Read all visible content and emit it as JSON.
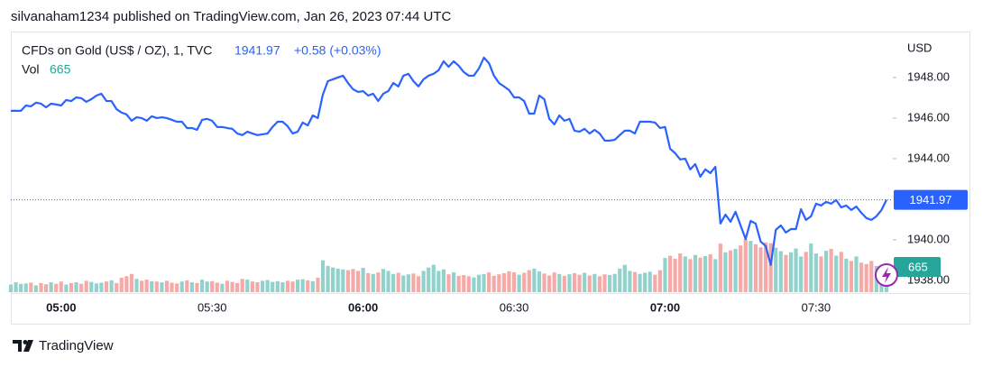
{
  "header": "silvanaham1234 published on TradingView.com, Jan 26, 2023 07:44 UTC",
  "footer": "TradingView",
  "chart_data": {
    "type": "line",
    "currency": "USD",
    "change": "+0.58 (+0.03%)",
    "x": [
      "04:50",
      "04:51",
      "04:52",
      "04:53",
      "04:54",
      "04:55",
      "04:56",
      "04:57",
      "04:58",
      "04:59",
      "05:00",
      "05:01",
      "05:02",
      "05:03",
      "05:04",
      "05:05",
      "05:06",
      "05:07",
      "05:08",
      "05:09",
      "05:10",
      "05:11",
      "05:12",
      "05:13",
      "05:14",
      "05:15",
      "05:16",
      "05:17",
      "05:18",
      "05:19",
      "05:20",
      "05:21",
      "05:22",
      "05:23",
      "05:24",
      "05:25",
      "05:26",
      "05:27",
      "05:28",
      "05:29",
      "05:30",
      "05:31",
      "05:32",
      "05:33",
      "05:34",
      "05:35",
      "05:36",
      "05:37",
      "05:38",
      "05:39",
      "05:40",
      "05:41",
      "05:42",
      "05:43",
      "05:44",
      "05:45",
      "05:46",
      "05:47",
      "05:48",
      "05:49",
      "05:50",
      "05:51",
      "05:52",
      "05:53",
      "05:54",
      "05:55",
      "05:56",
      "05:57",
      "05:58",
      "05:59",
      "06:00",
      "06:01",
      "06:02",
      "06:03",
      "06:04",
      "06:05",
      "06:06",
      "06:07",
      "06:08",
      "06:09",
      "06:10",
      "06:11",
      "06:12",
      "06:13",
      "06:14",
      "06:15",
      "06:16",
      "06:17",
      "06:18",
      "06:19",
      "06:20",
      "06:21",
      "06:22",
      "06:23",
      "06:24",
      "06:25",
      "06:26",
      "06:27",
      "06:28",
      "06:29",
      "06:30",
      "06:31",
      "06:32",
      "06:33",
      "06:34",
      "06:35",
      "06:36",
      "06:37",
      "06:38",
      "06:39",
      "06:40",
      "06:41",
      "06:42",
      "06:43",
      "06:44",
      "06:45",
      "06:46",
      "06:47",
      "06:48",
      "06:49",
      "06:50",
      "06:51",
      "06:52",
      "06:53",
      "06:54",
      "06:55",
      "06:56",
      "06:57",
      "06:58",
      "06:59",
      "07:00",
      "07:01",
      "07:02",
      "07:03",
      "07:04",
      "07:05",
      "07:06",
      "07:07",
      "07:08",
      "07:09",
      "07:10",
      "07:11",
      "07:12",
      "07:13",
      "07:14",
      "07:15",
      "07:16",
      "07:17",
      "07:18",
      "07:19",
      "07:20",
      "07:21",
      "07:22",
      "07:23",
      "07:24",
      "07:25",
      "07:26",
      "07:27",
      "07:28",
      "07:29",
      "07:30",
      "07:31",
      "07:32",
      "07:33",
      "07:34",
      "07:35",
      "07:36",
      "07:37",
      "07:38",
      "07:39",
      "07:40",
      "07:41",
      "07:42",
      "07:43",
      "07:44"
    ],
    "series": [
      {
        "name": "CFDs on Gold (US$ / OZ), 1, TVC",
        "color": "#2962ff",
        "values": [
          1946.36,
          1946.36,
          1946.36,
          1946.62,
          1946.58,
          1946.76,
          1946.71,
          1946.53,
          1946.71,
          1946.67,
          1946.62,
          1946.89,
          1946.84,
          1947.02,
          1946.98,
          1946.8,
          1946.93,
          1947.11,
          1947.2,
          1946.84,
          1946.84,
          1946.44,
          1946.27,
          1946.18,
          1945.87,
          1946.04,
          1946.0,
          1945.87,
          1946.09,
          1946.0,
          1946.04,
          1946.0,
          1945.91,
          1945.82,
          1945.82,
          1945.51,
          1945.51,
          1945.42,
          1945.91,
          1945.96,
          1945.87,
          1945.56,
          1945.56,
          1945.51,
          1945.47,
          1945.24,
          1945.16,
          1945.33,
          1945.24,
          1945.16,
          1945.2,
          1945.24,
          1945.56,
          1945.82,
          1945.82,
          1945.6,
          1945.24,
          1945.33,
          1945.78,
          1945.64,
          1946.13,
          1946.0,
          1947.16,
          1947.82,
          1947.91,
          1948.0,
          1948.09,
          1947.73,
          1947.42,
          1947.29,
          1947.33,
          1947.11,
          1947.2,
          1946.84,
          1947.2,
          1947.33,
          1947.73,
          1947.56,
          1948.09,
          1948.18,
          1947.82,
          1947.56,
          1947.91,
          1948.09,
          1948.18,
          1948.36,
          1948.8,
          1948.53,
          1948.8,
          1948.58,
          1948.27,
          1948.09,
          1948.09,
          1948.44,
          1948.98,
          1948.71,
          1948.09,
          1947.73,
          1947.56,
          1947.38,
          1947.02,
          1947.02,
          1946.84,
          1946.22,
          1946.22,
          1947.11,
          1946.93,
          1945.96,
          1945.69,
          1946.13,
          1945.87,
          1945.96,
          1945.38,
          1945.33,
          1945.47,
          1945.24,
          1945.42,
          1945.24,
          1944.89,
          1944.89,
          1944.93,
          1945.16,
          1945.38,
          1945.38,
          1945.24,
          1945.82,
          1945.82,
          1945.82,
          1945.78,
          1945.51,
          1945.56,
          1944.49,
          1944.27,
          1943.96,
          1944.0,
          1943.47,
          1943.73,
          1943.11,
          1943.47,
          1943.29,
          1943.6,
          1940.8,
          1941.24,
          1940.89,
          1941.38,
          1940.71,
          1940.04,
          1940.93,
          1940.8,
          1939.91,
          1939.69,
          1938.76,
          1940.49,
          1940.71,
          1940.36,
          1940.53,
          1940.53,
          1941.51,
          1940.98,
          1941.16,
          1941.78,
          1941.69,
          1941.87,
          1941.78,
          1941.96,
          1941.6,
          1941.69,
          1941.47,
          1941.64,
          1941.33,
          1941.07,
          1940.98,
          1941.16,
          1941.47,
          1941.97
        ]
      },
      {
        "name": "Vol",
        "axis": "y2",
        "up_color": "#92d2cc",
        "down_color": "#f7a9a7",
        "color": "#26a69a",
        "values": [
          200,
          260,
          220,
          230,
          250,
          180,
          240,
          210,
          260,
          220,
          280,
          200,
          240,
          260,
          220,
          300,
          270,
          230,
          250,
          280,
          310,
          240,
          380,
          420,
          480,
          350,
          300,
          330,
          290,
          280,
          260,
          300,
          250,
          230,
          280,
          310,
          260,
          240,
          330,
          280,
          290,
          250,
          220,
          300,
          270,
          240,
          350,
          330,
          280,
          260,
          300,
          320,
          270,
          290,
          260,
          300,
          280,
          330,
          340,
          310,
          290,
          380,
          840,
          690,
          650,
          620,
          600,
          580,
          610,
          560,
          640,
          500,
          480,
          520,
          610,
          560,
          480,
          510,
          440,
          470,
          490,
          420,
          560,
          650,
          720,
          560,
          600,
          470,
          520,
          430,
          450,
          420,
          390,
          460,
          480,
          520,
          430,
          470,
          500,
          550,
          520,
          460,
          510,
          580,
          620,
          550,
          490,
          440,
          520,
          480,
          430,
          470,
          500,
          460,
          510,
          440,
          480,
          420,
          470,
          450,
          480,
          620,
          720,
          560,
          530,
          480,
          510,
          540,
          460,
          580,
          900,
          960,
          880,
          1020,
          940,
          870,
          980,
          910,
          950,
          1000,
          870,
          1280,
          1050,
          1100,
          1140,
          1230,
          1400,
          1350,
          1260,
          1180,
          1310,
          1290,
          1170,
          1080,
          980,
          1050,
          1150,
          940,
          1060,
          1280,
          1020,
          940,
          1090,
          1140,
          960,
          1060,
          880,
          820,
          940,
          780,
          740,
          820,
          690,
          720,
          665
        ]
      }
    ],
    "ylim": [
      1937.42,
      1950.22
    ],
    "yticks": [
      {
        "value": 1938,
        "label": "1938.00"
      },
      {
        "value": 1940,
        "label": "1940.00"
      },
      {
        "value": 1944,
        "label": "1944.00"
      },
      {
        "value": 1946,
        "label": "1946.00"
      },
      {
        "value": 1948,
        "label": "1948.00"
      }
    ],
    "y2lim": [
      0,
      6840
    ],
    "xticks": [
      "05:00",
      "05:30",
      "06:00",
      "06:30",
      "07:00",
      "07:30"
    ],
    "grid": false
  }
}
